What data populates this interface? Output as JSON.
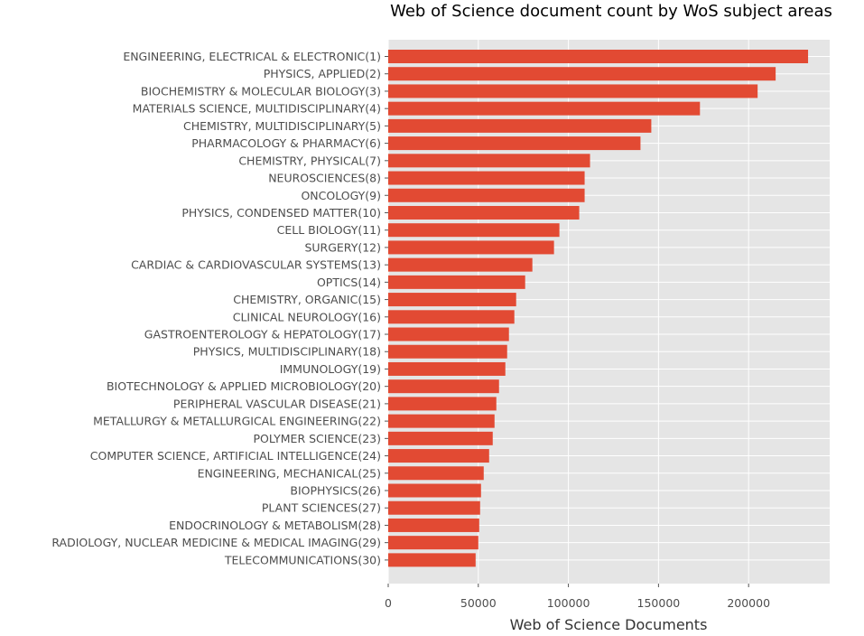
{
  "chart_data": {
    "type": "bar",
    "orientation": "horizontal",
    "title": "Web of Science document count by WoS subject areas",
    "xlabel": "Web of Science Documents",
    "ylabel": "",
    "xlim": [
      0,
      245000
    ],
    "xticks": [
      0,
      50000,
      100000,
      150000,
      200000
    ],
    "grid": true,
    "legend": "none",
    "colors": {
      "bar": "#e24a33",
      "plot_bg": "#e5e5e5",
      "grid": "#ffffff"
    },
    "categories": [
      "ENGINEERING, ELECTRICAL & ELECTRONIC(1)",
      "PHYSICS, APPLIED(2)",
      "BIOCHEMISTRY & MOLECULAR BIOLOGY(3)",
      "MATERIALS SCIENCE, MULTIDISCIPLINARY(4)",
      "CHEMISTRY, MULTIDISCIPLINARY(5)",
      "PHARMACOLOGY & PHARMACY(6)",
      "CHEMISTRY, PHYSICAL(7)",
      "NEUROSCIENCES(8)",
      "ONCOLOGY(9)",
      "PHYSICS, CONDENSED MATTER(10)",
      "CELL BIOLOGY(11)",
      "SURGERY(12)",
      "CARDIAC & CARDIOVASCULAR SYSTEMS(13)",
      "OPTICS(14)",
      "CHEMISTRY, ORGANIC(15)",
      "CLINICAL NEUROLOGY(16)",
      "GASTROENTEROLOGY & HEPATOLOGY(17)",
      "PHYSICS, MULTIDISCIPLINARY(18)",
      "IMMUNOLOGY(19)",
      "BIOTECHNOLOGY & APPLIED MICROBIOLOGY(20)",
      "PERIPHERAL VASCULAR DISEASE(21)",
      "METALLURGY & METALLURGICAL ENGINEERING(22)",
      "POLYMER SCIENCE(23)",
      "COMPUTER SCIENCE, ARTIFICIAL INTELLIGENCE(24)",
      "ENGINEERING, MECHANICAL(25)",
      "BIOPHYSICS(26)",
      "PLANT SCIENCES(27)",
      "ENDOCRINOLOGY & METABOLISM(28)",
      "RADIOLOGY, NUCLEAR MEDICINE & MEDICAL IMAGING(29)",
      "TELECOMMUNICATIONS(30)"
    ],
    "values": [
      233000,
      215000,
      205000,
      173000,
      146000,
      140000,
      112000,
      109000,
      109000,
      106000,
      95000,
      92000,
      80000,
      76000,
      71000,
      70000,
      67000,
      66000,
      65000,
      61500,
      60000,
      59000,
      58000,
      56000,
      53000,
      51500,
      51000,
      50500,
      50000,
      48500
    ]
  }
}
